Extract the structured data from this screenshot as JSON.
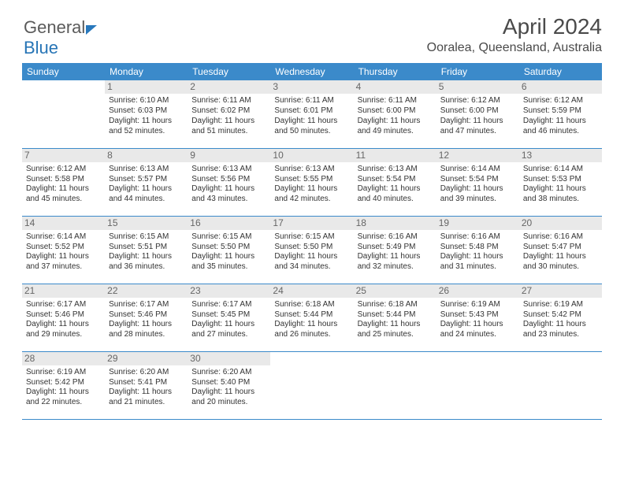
{
  "logo": {
    "text1": "General",
    "text2": "Blue"
  },
  "month_title": "April 2024",
  "location": "Ooralea, Queensland, Australia",
  "header_bg": "#3b8aca",
  "weekdays": [
    "Sunday",
    "Monday",
    "Tuesday",
    "Wednesday",
    "Thursday",
    "Friday",
    "Saturday"
  ],
  "first_day_index": 1,
  "days": [
    {
      "n": 1,
      "sunrise": "6:10 AM",
      "sunset": "6:03 PM",
      "dl": "11 hours and 52 minutes."
    },
    {
      "n": 2,
      "sunrise": "6:11 AM",
      "sunset": "6:02 PM",
      "dl": "11 hours and 51 minutes."
    },
    {
      "n": 3,
      "sunrise": "6:11 AM",
      "sunset": "6:01 PM",
      "dl": "11 hours and 50 minutes."
    },
    {
      "n": 4,
      "sunrise": "6:11 AM",
      "sunset": "6:00 PM",
      "dl": "11 hours and 49 minutes."
    },
    {
      "n": 5,
      "sunrise": "6:12 AM",
      "sunset": "6:00 PM",
      "dl": "11 hours and 47 minutes."
    },
    {
      "n": 6,
      "sunrise": "6:12 AM",
      "sunset": "5:59 PM",
      "dl": "11 hours and 46 minutes."
    },
    {
      "n": 7,
      "sunrise": "6:12 AM",
      "sunset": "5:58 PM",
      "dl": "11 hours and 45 minutes."
    },
    {
      "n": 8,
      "sunrise": "6:13 AM",
      "sunset": "5:57 PM",
      "dl": "11 hours and 44 minutes."
    },
    {
      "n": 9,
      "sunrise": "6:13 AM",
      "sunset": "5:56 PM",
      "dl": "11 hours and 43 minutes."
    },
    {
      "n": 10,
      "sunrise": "6:13 AM",
      "sunset": "5:55 PM",
      "dl": "11 hours and 42 minutes."
    },
    {
      "n": 11,
      "sunrise": "6:13 AM",
      "sunset": "5:54 PM",
      "dl": "11 hours and 40 minutes."
    },
    {
      "n": 12,
      "sunrise": "6:14 AM",
      "sunset": "5:54 PM",
      "dl": "11 hours and 39 minutes."
    },
    {
      "n": 13,
      "sunrise": "6:14 AM",
      "sunset": "5:53 PM",
      "dl": "11 hours and 38 minutes."
    },
    {
      "n": 14,
      "sunrise": "6:14 AM",
      "sunset": "5:52 PM",
      "dl": "11 hours and 37 minutes."
    },
    {
      "n": 15,
      "sunrise": "6:15 AM",
      "sunset": "5:51 PM",
      "dl": "11 hours and 36 minutes."
    },
    {
      "n": 16,
      "sunrise": "6:15 AM",
      "sunset": "5:50 PM",
      "dl": "11 hours and 35 minutes."
    },
    {
      "n": 17,
      "sunrise": "6:15 AM",
      "sunset": "5:50 PM",
      "dl": "11 hours and 34 minutes."
    },
    {
      "n": 18,
      "sunrise": "6:16 AM",
      "sunset": "5:49 PM",
      "dl": "11 hours and 32 minutes."
    },
    {
      "n": 19,
      "sunrise": "6:16 AM",
      "sunset": "5:48 PM",
      "dl": "11 hours and 31 minutes."
    },
    {
      "n": 20,
      "sunrise": "6:16 AM",
      "sunset": "5:47 PM",
      "dl": "11 hours and 30 minutes."
    },
    {
      "n": 21,
      "sunrise": "6:17 AM",
      "sunset": "5:46 PM",
      "dl": "11 hours and 29 minutes."
    },
    {
      "n": 22,
      "sunrise": "6:17 AM",
      "sunset": "5:46 PM",
      "dl": "11 hours and 28 minutes."
    },
    {
      "n": 23,
      "sunrise": "6:17 AM",
      "sunset": "5:45 PM",
      "dl": "11 hours and 27 minutes."
    },
    {
      "n": 24,
      "sunrise": "6:18 AM",
      "sunset": "5:44 PM",
      "dl": "11 hours and 26 minutes."
    },
    {
      "n": 25,
      "sunrise": "6:18 AM",
      "sunset": "5:44 PM",
      "dl": "11 hours and 25 minutes."
    },
    {
      "n": 26,
      "sunrise": "6:19 AM",
      "sunset": "5:43 PM",
      "dl": "11 hours and 24 minutes."
    },
    {
      "n": 27,
      "sunrise": "6:19 AM",
      "sunset": "5:42 PM",
      "dl": "11 hours and 23 minutes."
    },
    {
      "n": 28,
      "sunrise": "6:19 AM",
      "sunset": "5:42 PM",
      "dl": "11 hours and 22 minutes."
    },
    {
      "n": 29,
      "sunrise": "6:20 AM",
      "sunset": "5:41 PM",
      "dl": "11 hours and 21 minutes."
    },
    {
      "n": 30,
      "sunrise": "6:20 AM",
      "sunset": "5:40 PM",
      "dl": "11 hours and 20 minutes."
    }
  ],
  "labels": {
    "sunrise": "Sunrise: ",
    "sunset": "Sunset: ",
    "daylight": "Daylight: "
  }
}
